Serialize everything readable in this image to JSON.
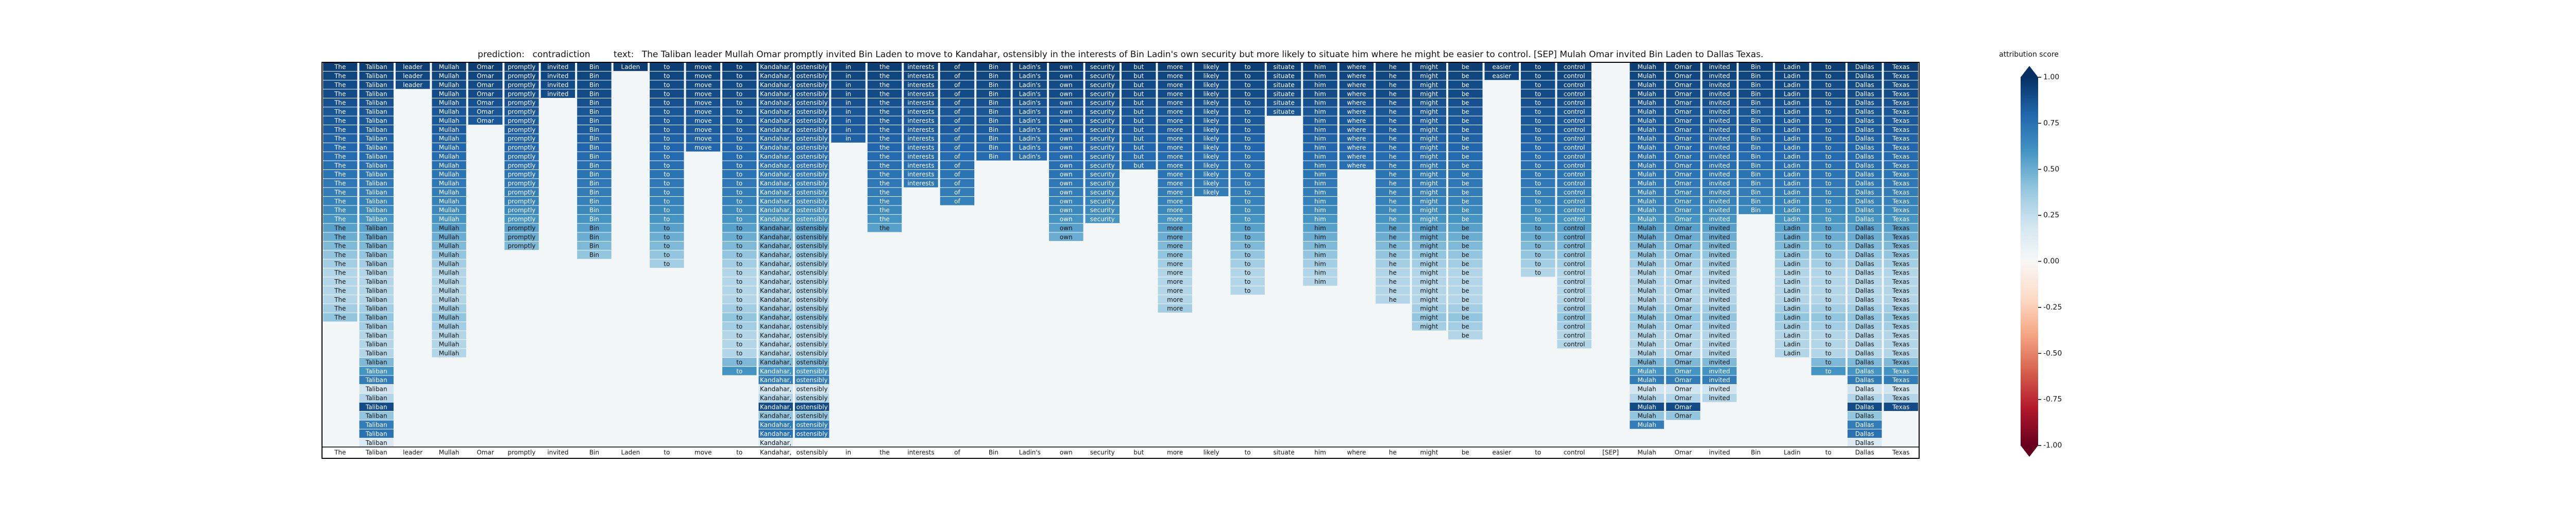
{
  "chart_data": {
    "type": "attribution-hierarchy",
    "prediction_label": "prediction:",
    "prediction": "contradiction",
    "text_label": "text:",
    "text": "The Taliban leader Mullah Omar promptly invited Bin Laden to move to Kandahar, ostensibly in the interests of Bin Ladin's own security but more likely to situate him where he might be easier to control. [SEP] Mulah Omar invited Bin Laden to Dallas Texas.",
    "colormap": "RdBu",
    "colorbar_label": "attribution score",
    "clim": [
      -1,
      1
    ],
    "cticks": [
      {
        "value": 1,
        "label": "1.00"
      },
      {
        "value": 0.75,
        "label": "0.75"
      },
      {
        "value": 0.5,
        "label": "0.50"
      },
      {
        "value": 0.25,
        "label": "0.25"
      },
      {
        "value": 0,
        "label": "0.00"
      },
      {
        "value": -0.25,
        "label": "-0.25"
      },
      {
        "value": -0.5,
        "label": "-0.50"
      },
      {
        "value": -0.75,
        "label": "-0.75"
      },
      {
        "value": -1,
        "label": "-1.00"
      }
    ],
    "row_scores": [
      0.95,
      0.92,
      0.9,
      0.9,
      0.88,
      0.86,
      0.85,
      0.84,
      0.82,
      0.8,
      0.78,
      0.76,
      0.74,
      0.72,
      0.7,
      0.68,
      0.65,
      0.6,
      0.55,
      0.5,
      0.45,
      0.4,
      0.35,
      0.3,
      0.3,
      0.3,
      0.3,
      0.35,
      0.4,
      0.35,
      0.3,
      0.3,
      0.3,
      0.45,
      0.6,
      0.7,
      0.2,
      0.3,
      0.9,
      0.4,
      0.7,
      0.75,
      0.15
    ],
    "tokens": [
      {
        "text": "The",
        "depth": 29
      },
      {
        "text": "Taliban",
        "depth": 43
      },
      {
        "text": "leader",
        "depth": 3
      },
      {
        "text": "Mullah",
        "depth": 33
      },
      {
        "text": "Omar",
        "depth": 7
      },
      {
        "text": "promptly",
        "depth": 21
      },
      {
        "text": "invited",
        "depth": 4
      },
      {
        "text": "Bin",
        "depth": 22
      },
      {
        "text": "Laden",
        "depth": 1
      },
      {
        "text": "to",
        "depth": 23
      },
      {
        "text": "move",
        "depth": 10
      },
      {
        "text": "to",
        "depth": 35
      },
      {
        "text": "Kandahar,",
        "depth": 43
      },
      {
        "text": "ostensibly",
        "depth": 42
      },
      {
        "text": "in",
        "depth": 9
      },
      {
        "text": "the",
        "depth": 19
      },
      {
        "text": "interests",
        "depth": 14
      },
      {
        "text": "of",
        "depth": 16
      },
      {
        "text": "Bin",
        "depth": 11
      },
      {
        "text": "Ladin's",
        "depth": 11
      },
      {
        "text": "own",
        "depth": 20
      },
      {
        "text": "security",
        "depth": 18
      },
      {
        "text": "but",
        "depth": 12
      },
      {
        "text": "more",
        "depth": 28
      },
      {
        "text": "likely",
        "depth": 15
      },
      {
        "text": "to",
        "depth": 26
      },
      {
        "text": "situate",
        "depth": 6
      },
      {
        "text": "him",
        "depth": 25
      },
      {
        "text": "where",
        "depth": 12
      },
      {
        "text": "he",
        "depth": 27
      },
      {
        "text": "might",
        "depth": 30
      },
      {
        "text": "be",
        "depth": 31
      },
      {
        "text": "easier",
        "depth": 2
      },
      {
        "text": "to",
        "depth": 24
      },
      {
        "text": "control",
        "depth": 32
      },
      {
        "text": "[SEP]",
        "depth": 0
      },
      {
        "text": "Mulah",
        "depth": 41
      },
      {
        "text": "Omar",
        "depth": 40
      },
      {
        "text": "invited",
        "depth": 38
      },
      {
        "text": "Bin",
        "depth": 17
      },
      {
        "text": "Ladin",
        "depth": 33
      },
      {
        "text": "to",
        "depth": 35
      },
      {
        "text": "Dallas",
        "depth": 43
      },
      {
        "text": "Texas",
        "depth": 39
      }
    ]
  }
}
